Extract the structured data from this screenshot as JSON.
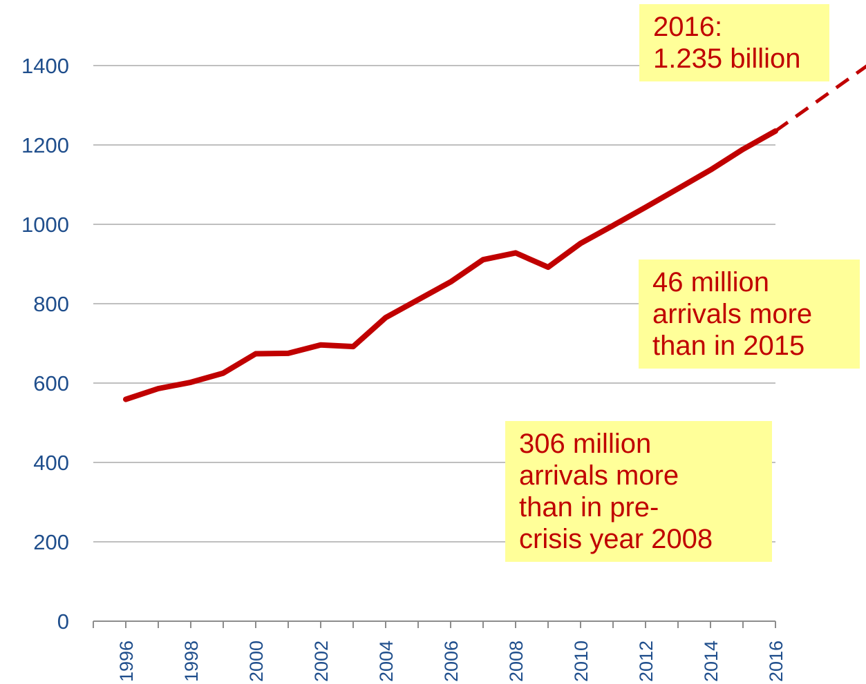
{
  "chart_data": {
    "type": "line",
    "title": "",
    "xlabel": "",
    "ylabel": "",
    "ylim": [
      0,
      1400
    ],
    "yticks": [
      0,
      200,
      400,
      600,
      800,
      1000,
      1200,
      1400
    ],
    "x_range": [
      1995,
      2016
    ],
    "xtick_labels": [
      "1996",
      "1998",
      "2000",
      "2002",
      "2004",
      "2006",
      "2008",
      "2010",
      "2012",
      "2014",
      "2016"
    ],
    "grid": true,
    "line_color": "#c00000",
    "series": [
      {
        "x": [
          1996,
          1997,
          1998,
          1999,
          2000,
          2001,
          2002,
          2003,
          2004,
          2005,
          2006,
          2007,
          2008,
          2009,
          2010,
          2011,
          2012,
          2013,
          2014,
          2015,
          2016
        ],
        "values": [
          559,
          586,
          602,
          625,
          674,
          675,
          696,
          692,
          765,
          810,
          855,
          911,
          928,
          892,
          952,
          997,
          1043,
          1090,
          1137,
          1189,
          1235
        ]
      }
    ],
    "projection": {
      "style": "dashed",
      "x": [
        2016,
        2019
      ],
      "values": [
        1235,
        1410
      ]
    }
  },
  "annotations": {
    "total_2016": {
      "lines": [
        "2016:",
        "1.235 billion"
      ]
    },
    "vs_2015": {
      "lines": [
        "46 million",
        "arrivals more",
        "than in 2015"
      ]
    },
    "vs_2008": {
      "lines": [
        "306 million",
        "arrivals more",
        "than in pre-",
        "crisis year 2008"
      ]
    }
  },
  "colors": {
    "line": "#c00000",
    "note_bg": "#ffff99",
    "note_text": "#c00000",
    "axis_text": "#1f4e8c",
    "grid": "#bfbfbf"
  }
}
